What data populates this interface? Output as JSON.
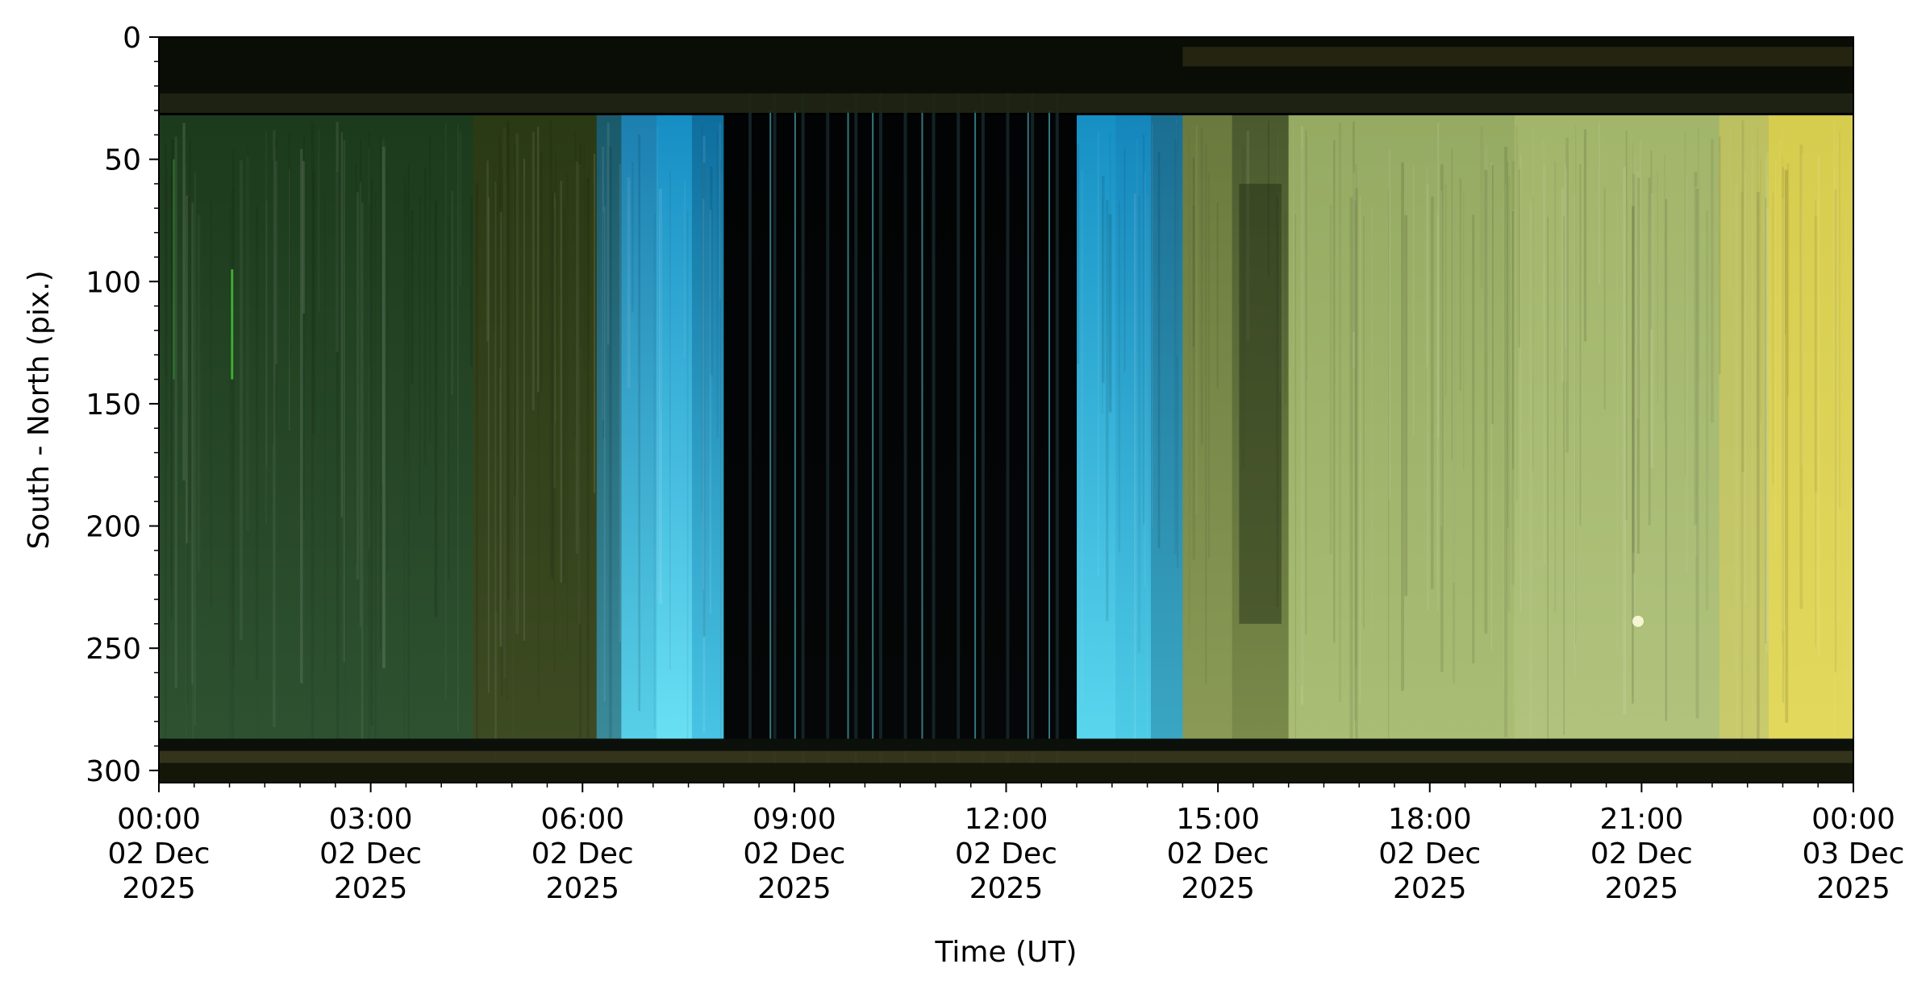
{
  "chart_data": {
    "type": "heatmap",
    "title": "",
    "xlabel": "Time (UT)",
    "ylabel": "South - North (pix.)",
    "y_ticks": [
      0,
      50,
      100,
      150,
      200,
      250,
      300
    ],
    "ylim": [
      305,
      0
    ],
    "x_ticks": [
      {
        "hour": 0,
        "lines": [
          "00:00",
          "02 Dec",
          "2025"
        ]
      },
      {
        "hour": 3,
        "lines": [
          "03:00",
          "02 Dec",
          "2025"
        ]
      },
      {
        "hour": 6,
        "lines": [
          "06:00",
          "02 Dec",
          "2025"
        ]
      },
      {
        "hour": 9,
        "lines": [
          "09:00",
          "02 Dec",
          "2025"
        ]
      },
      {
        "hour": 12,
        "lines": [
          "12:00",
          "02 Dec",
          "2025"
        ]
      },
      {
        "hour": 15,
        "lines": [
          "15:00",
          "02 Dec",
          "2025"
        ]
      },
      {
        "hour": 18,
        "lines": [
          "18:00",
          "02 Dec",
          "2025"
        ]
      },
      {
        "hour": 21,
        "lines": [
          "21:00",
          "02 Dec",
          "2025"
        ]
      },
      {
        "hour": 24,
        "lines": [
          "00:00",
          "03 Dec",
          "2025"
        ]
      }
    ],
    "xlim_hours": [
      0,
      24
    ],
    "segments": [
      {
        "start": 0.0,
        "end": 4.45,
        "top": "#1c3a1c",
        "bottom": "#2e5230"
      },
      {
        "start": 4.45,
        "end": 6.2,
        "top": "#2a3a14",
        "bottom": "#3d4a22"
      },
      {
        "start": 6.2,
        "end": 6.55,
        "top": "#1a5a6a",
        "bottom": "#3a8a9a"
      },
      {
        "start": 6.55,
        "end": 7.05,
        "top": "#1c7fb0",
        "bottom": "#58d0e8"
      },
      {
        "start": 7.05,
        "end": 7.55,
        "top": "#168ec4",
        "bottom": "#6ae0f4"
      },
      {
        "start": 7.55,
        "end": 8.0,
        "top": "#0e6e9e",
        "bottom": "#48c4e4"
      },
      {
        "start": 8.0,
        "end": 13.0,
        "top": "#020304",
        "bottom": "#040607"
      },
      {
        "start": 13.0,
        "end": 13.55,
        "top": "#1690c4",
        "bottom": "#5ad6ee"
      },
      {
        "start": 13.55,
        "end": 14.05,
        "top": "#1486bc",
        "bottom": "#4ecce6"
      },
      {
        "start": 14.05,
        "end": 14.5,
        "top": "#1a6e92",
        "bottom": "#3aa6c4"
      },
      {
        "start": 14.5,
        "end": 15.2,
        "top": "#6a7a3e",
        "bottom": "#8a9a56"
      },
      {
        "start": 15.2,
        "end": 16.0,
        "top": "#4a5a2e",
        "bottom": "#7a8a4a"
      },
      {
        "start": 16.0,
        "end": 19.2,
        "top": "#95aa62",
        "bottom": "#aabd74"
      },
      {
        "start": 19.2,
        "end": 22.1,
        "top": "#a2b56a",
        "bottom": "#b0c27c"
      },
      {
        "start": 22.1,
        "end": 22.8,
        "top": "#bcc060",
        "bottom": "#c8ca6c"
      },
      {
        "start": 22.8,
        "end": 24.0,
        "top": "#d6cc4e",
        "bottom": "#e2d85c"
      }
    ],
    "dark_lines": [
      8.35,
      8.7,
      9.1,
      9.45,
      9.85,
      10.2,
      10.55,
      10.95,
      11.3,
      11.65,
      12.0,
      12.35,
      12.7
    ],
    "bright_lines": [
      8.65,
      9.0,
      9.75,
      10.1,
      10.8,
      11.55,
      12.3,
      12.6
    ]
  }
}
